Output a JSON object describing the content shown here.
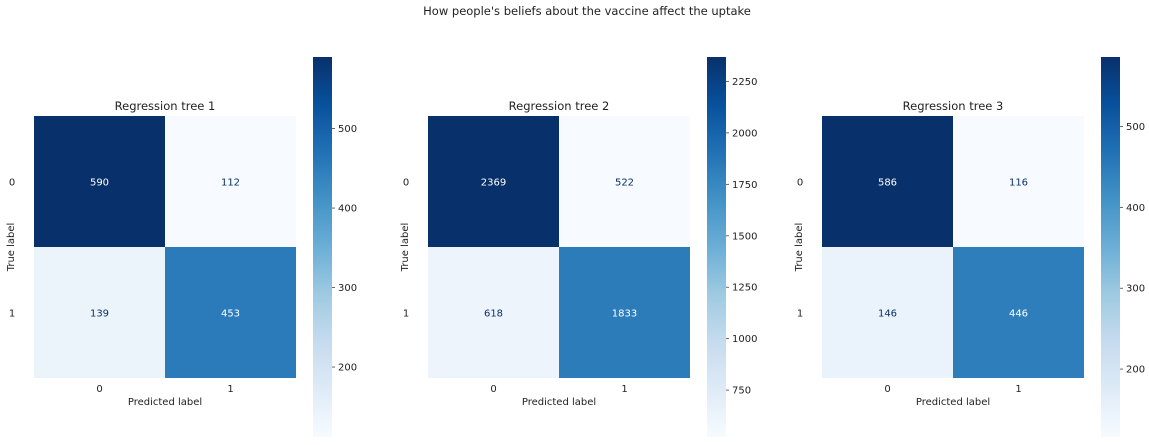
{
  "figure": {
    "title": "How people's beliefs about the vaccine affect the uptake"
  },
  "chart_data": [
    {
      "type": "heatmap",
      "title": "Regression tree 1",
      "xlabel": "Predicted label",
      "ylabel": "True label",
      "x_categories": [
        "0",
        "1"
      ],
      "y_categories": [
        "0",
        "1"
      ],
      "values": [
        [
          590,
          112
        ],
        [
          139,
          453
        ]
      ],
      "colorbar": {
        "min": 112,
        "max": 590,
        "ticks": [
          200,
          300,
          400,
          500
        ]
      },
      "colormap": "Blues",
      "grid": false
    },
    {
      "type": "heatmap",
      "title": "Regression tree 2",
      "xlabel": "Predicted label",
      "ylabel": "True label",
      "x_categories": [
        "0",
        "1"
      ],
      "y_categories": [
        "0",
        "1"
      ],
      "values": [
        [
          2369,
          522
        ],
        [
          618,
          1833
        ]
      ],
      "colorbar": {
        "min": 522,
        "max": 2369,
        "ticks": [
          750,
          1000,
          1250,
          1500,
          1750,
          2000,
          2250
        ]
      },
      "colormap": "Blues",
      "grid": false
    },
    {
      "type": "heatmap",
      "title": "Regression tree 3",
      "xlabel": "Predicted label",
      "ylabel": "True label",
      "x_categories": [
        "0",
        "1"
      ],
      "y_categories": [
        "0",
        "1"
      ],
      "values": [
        [
          586,
          116
        ],
        [
          146,
          446
        ]
      ],
      "colorbar": {
        "min": 116,
        "max": 586,
        "ticks": [
          200,
          300,
          400,
          500
        ]
      },
      "colormap": "Blues",
      "grid": false
    }
  ]
}
